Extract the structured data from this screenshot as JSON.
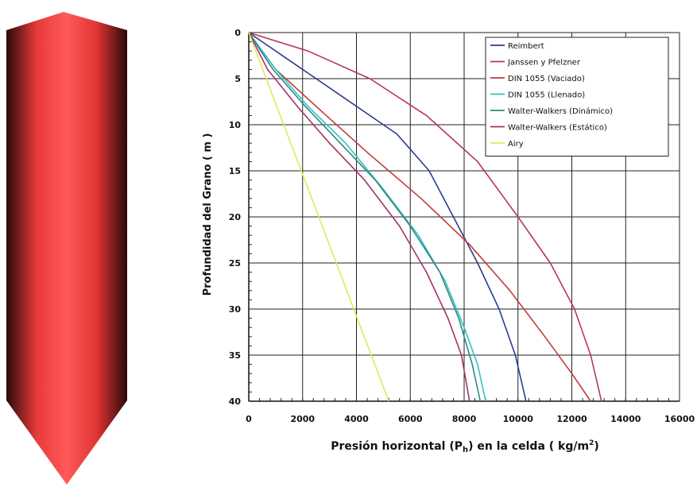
{
  "chart_data": {
    "type": "line",
    "xlabel_main": "Presión horizontal (P",
    "xlabel_sub": "h",
    "xlabel_end": ") en la celda ( kg/m",
    "xlabel_sup": "2",
    "xlabel_close": ")",
    "ylabel": "Profundidad del Grano ( m )",
    "xlim": [
      0,
      16000
    ],
    "ylim": [
      0,
      40
    ],
    "x_reversed": false,
    "y_inverted": true,
    "grid": true,
    "legend_position": "top-right",
    "x_ticks": [
      "0",
      "2000",
      "4000",
      "6000",
      "8000",
      "10000",
      "12000",
      "14000",
      "16000"
    ],
    "y_ticks": [
      "0",
      "5",
      "10",
      "15",
      "20",
      "25",
      "30",
      "35",
      "40"
    ],
    "series": [
      {
        "name": "Reimbert",
        "color": "#2a3c8f",
        "points": [
          [
            0,
            0
          ],
          [
            1500,
            3
          ],
          [
            3500,
            7
          ],
          [
            5500,
            11
          ],
          [
            6700,
            15
          ],
          [
            7600,
            20
          ],
          [
            8500,
            25
          ],
          [
            9300,
            30
          ],
          [
            9900,
            35
          ],
          [
            10300,
            40
          ]
        ]
      },
      {
        "name": "Janssen y Pfelzner",
        "color": "#b8384f",
        "points": [
          [
            0,
            0
          ],
          [
            2200,
            2
          ],
          [
            4500,
            5
          ],
          [
            6600,
            9
          ],
          [
            8500,
            14
          ],
          [
            10000,
            20
          ],
          [
            11200,
            25
          ],
          [
            12100,
            30
          ],
          [
            12700,
            35
          ],
          [
            13100,
            40
          ]
        ]
      },
      {
        "name": "DIN 1055 (Vaciado)",
        "color": "#c23a3a",
        "points": [
          [
            0,
            0
          ],
          [
            1000,
            4
          ],
          [
            2500,
            8
          ],
          [
            4400,
            13
          ],
          [
            6400,
            18
          ],
          [
            8200,
            23
          ],
          [
            9700,
            28
          ],
          [
            11000,
            33
          ],
          [
            12000,
            37
          ],
          [
            12700,
            40
          ]
        ]
      },
      {
        "name": "DIN 1055 (Llenado)",
        "color": "#33c2c2",
        "points": [
          [
            0,
            0
          ],
          [
            1000,
            4
          ],
          [
            2200,
            8
          ],
          [
            3600,
            12
          ],
          [
            5000,
            17
          ],
          [
            6300,
            22
          ],
          [
            7300,
            27
          ],
          [
            8000,
            32
          ],
          [
            8500,
            36
          ],
          [
            8800,
            40
          ]
        ]
      },
      {
        "name": "Walter-Walkers (Dinámico)",
        "color": "#2f8a86",
        "points": [
          [
            0,
            0
          ],
          [
            900,
            4
          ],
          [
            2100,
            8
          ],
          [
            3400,
            12
          ],
          [
            4700,
            16
          ],
          [
            6000,
            21
          ],
          [
            7100,
            26
          ],
          [
            7800,
            31
          ],
          [
            8300,
            36
          ],
          [
            8600,
            40
          ]
        ]
      },
      {
        "name": "Walter-Walkers (Estático)",
        "color": "#a5306b",
        "points": [
          [
            0,
            0
          ],
          [
            700,
            4
          ],
          [
            1800,
            8
          ],
          [
            3000,
            12
          ],
          [
            4300,
            16
          ],
          [
            5600,
            21
          ],
          [
            6600,
            26
          ],
          [
            7400,
            31
          ],
          [
            7900,
            35
          ],
          [
            8200,
            40
          ]
        ]
      },
      {
        "name": "Airy",
        "color": "#e6e65a",
        "points": [
          [
            0,
            0
          ],
          [
            1300,
            10
          ],
          [
            2600,
            20
          ],
          [
            3900,
            30
          ],
          [
            5200,
            40
          ]
        ]
      }
    ]
  }
}
